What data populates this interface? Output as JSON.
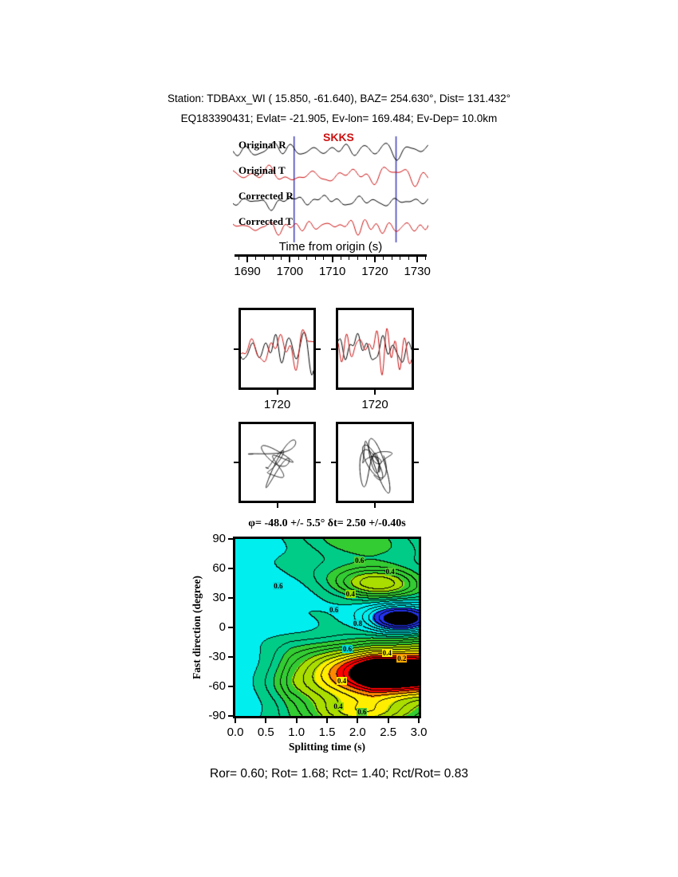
{
  "header": {
    "line1": "Station: TDBAxx_WI (  15.850,  -61.640), BAZ=  254.630°, Dist=  131.432°",
    "line2": "EQ183390431; Evlat= -21.905, Ev-lon= 169.484; Ev-Dep= 10.0km"
  },
  "footer": {
    "stats": "Ror= 0.60; Rot= 1.68; Rct= 1.40; Rct/Rot= 0.83"
  },
  "chart_data": [
    {
      "type": "line",
      "name": "waveform-traces",
      "xlabel": "Time from origin (s)",
      "x_ticks": [
        1690,
        1700,
        1710,
        1720,
        1730
      ],
      "x_minor_step": 2,
      "x_range": [
        1686.6,
        1732.6
      ],
      "phase_label": "SKKS",
      "phase_time": 1709,
      "window": [
        1701,
        1725
      ],
      "window_line_color": "#3a3ab8",
      "series": [
        {
          "name": "Original R",
          "color": "#000000",
          "seed": 11,
          "amp": 13
        },
        {
          "name": "Original T",
          "color": "#cc1111",
          "seed": 22,
          "amp": 14
        },
        {
          "name": "Corrected R",
          "color": "#000000",
          "seed": 33,
          "amp": 12
        },
        {
          "name": "Corrected T",
          "color": "#cc1111",
          "seed": 44,
          "amp": 11
        }
      ]
    },
    {
      "type": "line",
      "name": "window-zoom-panels",
      "panels": [
        {
          "label": "1720",
          "series": [
            "Original R",
            "Original T"
          ]
        },
        {
          "label": "1720",
          "series": [
            "Corrected R",
            "Corrected T"
          ]
        }
      ]
    },
    {
      "type": "scatter",
      "name": "particle-motion-panels",
      "panels": [
        {
          "series": "Original R vs Original T"
        },
        {
          "series": "Corrected R vs Corrected T"
        }
      ]
    },
    {
      "type": "heatmap",
      "name": "splitting-misfit-map",
      "title": "φ= -48.0 +/- 5.5° δt= 2.50 +/-0.40s",
      "xlabel": "Splitting time (s)",
      "ylabel": "Fast direction (degree)",
      "x_ticks": [
        "0.0",
        "0.5",
        "1.0",
        "1.5",
        "2.0",
        "2.5",
        "3.0"
      ],
      "y_ticks": [
        "90",
        "60",
        "30",
        "0",
        "-30",
        "-60",
        "-90"
      ],
      "xlim": [
        0,
        3
      ],
      "ylim": [
        -90,
        90
      ],
      "best_dt": 2.5,
      "best_phi": -48.0,
      "star": "★",
      "contour_interval": 0.05,
      "contour_labels": [
        {
          "text": "0.6",
          "dt": 2.05,
          "phi": 68,
          "bg": "#55cc33"
        },
        {
          "text": "0.4",
          "dt": 2.55,
          "phi": 57,
          "bg": "#55cc33"
        },
        {
          "text": "0.6",
          "dt": 0.72,
          "phi": 42,
          "bg": "#00dddd"
        },
        {
          "text": "0.4",
          "dt": 1.9,
          "phi": 34,
          "bg": "#99dd00"
        },
        {
          "text": "0.6",
          "dt": 1.63,
          "phi": 18,
          "bg": "#00dddd"
        },
        {
          "text": "0.8",
          "dt": 2.02,
          "phi": 4,
          "bg": "#00dddd"
        },
        {
          "text": "0.6",
          "dt": 1.85,
          "phi": -22,
          "bg": "#00dddd"
        },
        {
          "text": "0.4",
          "dt": 2.5,
          "phi": -26,
          "bg": "#ffee00"
        },
        {
          "text": "0.2",
          "dt": 2.74,
          "phi": -32,
          "bg": "#ffaa00"
        },
        {
          "text": "0.4",
          "dt": 1.76,
          "phi": -54,
          "bg": "#ffee00"
        },
        {
          "text": "0.4",
          "dt": 1.7,
          "phi": -80,
          "bg": "#99dd00"
        },
        {
          "text": "0.6",
          "dt": 2.09,
          "phi": -86,
          "bg": "#55cc33"
        }
      ],
      "colormap": [
        {
          "max": 0.1,
          "color": "#000000"
        },
        {
          "max": 0.2,
          "color": "#ff0000"
        },
        {
          "max": 0.26,
          "color": "#ff8800"
        },
        {
          "max": 0.34,
          "color": "#ffee00"
        },
        {
          "max": 0.46,
          "color": "#aadd00"
        },
        {
          "max": 0.6,
          "color": "#33cc33"
        },
        {
          "max": 0.7,
          "color": "#00cc88"
        },
        {
          "max": 0.88,
          "color": "#00eeee"
        },
        {
          "max": 0.99,
          "color": "#2233ee"
        },
        {
          "max": 9.0,
          "color": "#000000"
        }
      ]
    }
  ]
}
